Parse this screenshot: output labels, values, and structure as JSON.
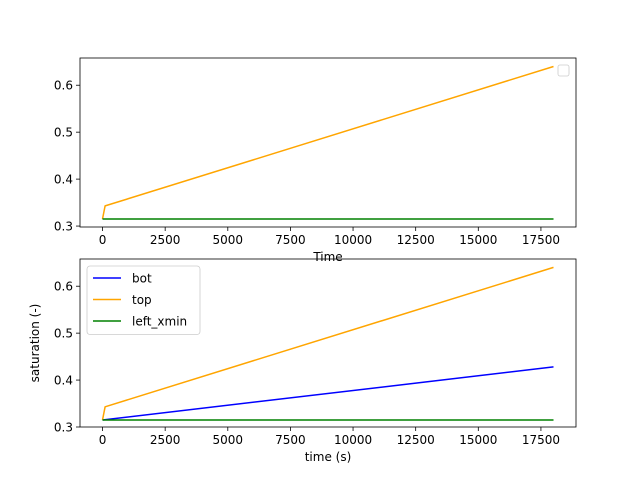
{
  "chart_data": [
    {
      "type": "line",
      "xlabel": "Time",
      "ylabel": "",
      "xlim": [
        -900,
        18900
      ],
      "ylim": [
        0.298,
        0.658
      ],
      "xticks": [
        0,
        2500,
        5000,
        7500,
        10000,
        12500,
        15000,
        17500
      ],
      "xtick_labels": [
        "0",
        "2500",
        "5000",
        "7500",
        "10000",
        "12500",
        "15000",
        "17500"
      ],
      "yticks": [
        0.3,
        0.4,
        0.5,
        0.6
      ],
      "ytick_labels": [
        "0.3",
        "0.4",
        "0.5",
        "0.6"
      ],
      "grid": false,
      "legend": {
        "placement": "top-right",
        "entries": []
      },
      "series": [
        {
          "color": "#ffa500",
          "x": [
            0,
            100,
            18000
          ],
          "y": [
            0.315,
            0.343,
            0.64
          ]
        },
        {
          "color": "#008000",
          "x": [
            0,
            18000
          ],
          "y": [
            0.315,
            0.315
          ]
        }
      ]
    },
    {
      "type": "line",
      "xlabel": "time (s)",
      "ylabel": "saturation (-)",
      "xlim": [
        -900,
        18900
      ],
      "ylim": [
        0.3,
        0.658
      ],
      "xticks": [
        0,
        2500,
        5000,
        7500,
        10000,
        12500,
        15000,
        17500
      ],
      "xtick_labels": [
        "0",
        "2500",
        "5000",
        "7500",
        "10000",
        "12500",
        "15000",
        "17500"
      ],
      "yticks": [
        0.3,
        0.4,
        0.5,
        0.6
      ],
      "ytick_labels": [
        "0.3",
        "0.4",
        "0.5",
        "0.6"
      ],
      "grid": false,
      "legend": {
        "placement": "top-left",
        "entries": [
          "bot",
          "top",
          "left_xmin"
        ]
      },
      "series": [
        {
          "name": "bot",
          "color": "#0000ff",
          "x": [
            0,
            18000
          ],
          "y": [
            0.315,
            0.428
          ]
        },
        {
          "name": "top",
          "color": "#ffa500",
          "x": [
            0,
            100,
            18000
          ],
          "y": [
            0.315,
            0.343,
            0.64
          ]
        },
        {
          "name": "left_xmin",
          "color": "#008000",
          "x": [
            0,
            18000
          ],
          "y": [
            0.315,
            0.315
          ]
        }
      ]
    }
  ]
}
